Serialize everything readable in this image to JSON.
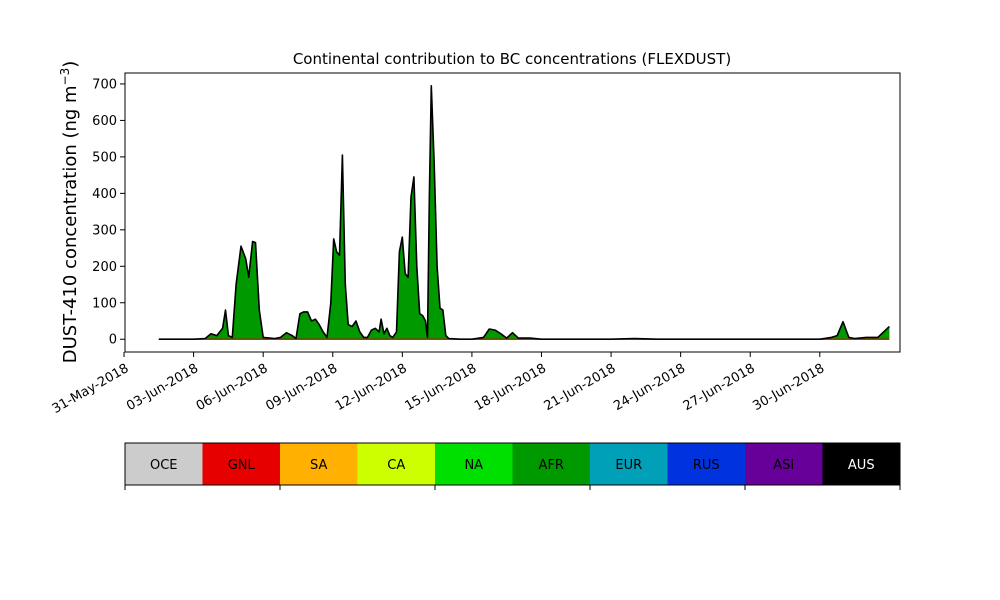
{
  "chart_data": {
    "type": "area",
    "title": "Continental contribution to BC concentrations (FLEXDUST)",
    "ylabel_main": "DUST-410 concentration (ng m",
    "ylabel_exp": "−3",
    "ylabel_close": ")",
    "xlabel": "",
    "x_range": [
      "2018-05-31T01:00",
      "2018-07-03T11:00"
    ],
    "ylim": [
      -35,
      730
    ],
    "yticks": [
      0,
      100,
      200,
      300,
      400,
      500,
      600,
      700
    ],
    "xticks": [
      {
        "date": "2018-05-31",
        "label": "31-May-2018"
      },
      {
        "date": "2018-06-03",
        "label": "03-Jun-2018"
      },
      {
        "date": "2018-06-06",
        "label": "06-Jun-2018"
      },
      {
        "date": "2018-06-09",
        "label": "09-Jun-2018"
      },
      {
        "date": "2018-06-12",
        "label": "12-Jun-2018"
      },
      {
        "date": "2018-06-15",
        "label": "15-Jun-2018"
      },
      {
        "date": "2018-06-18",
        "label": "18-Jun-2018"
      },
      {
        "date": "2018-06-21",
        "label": "21-Jun-2018"
      },
      {
        "date": "2018-06-24",
        "label": "24-Jun-2018"
      },
      {
        "date": "2018-06-27",
        "label": "27-Jun-2018"
      },
      {
        "date": "2018-06-30",
        "label": "30-Jun-2018"
      }
    ],
    "fill_color": "#009900",
    "line_color": "#000000",
    "legend_placement": "bottom",
    "legend": [
      {
        "label": "OCE",
        "color": "#cccccc",
        "text_color": "#000000"
      },
      {
        "label": "GNL",
        "color": "#e60000",
        "text_color": "#000000"
      },
      {
        "label": "SA",
        "color": "#ffb000",
        "text_color": "#000000"
      },
      {
        "label": "CA",
        "color": "#ccff00",
        "text_color": "#000000"
      },
      {
        "label": "NA",
        "color": "#00e000",
        "text_color": "#000000"
      },
      {
        "label": "AFR",
        "color": "#009900",
        "text_color": "#000000"
      },
      {
        "label": "EUR",
        "color": "#00a0b8",
        "text_color": "#000000"
      },
      {
        "label": "RUS",
        "color": "#0033dd",
        "text_color": "#000000"
      },
      {
        "label": "ASI",
        "color": "#660099",
        "text_color": "#000000"
      },
      {
        "label": "AUS",
        "color": "#000000",
        "text_color": "#ffffff"
      }
    ],
    "series": [
      {
        "name": "AFR",
        "points": [
          [
            "2018-06-01T12:00",
            0
          ],
          [
            "2018-06-02T00:00",
            0
          ],
          [
            "2018-06-02T12:00",
            0
          ],
          [
            "2018-06-03T00:00",
            0
          ],
          [
            "2018-06-03T12:00",
            2
          ],
          [
            "2018-06-03T18:00",
            15
          ],
          [
            "2018-06-04T00:00",
            10
          ],
          [
            "2018-06-04T06:00",
            30
          ],
          [
            "2018-06-04T09:00",
            80
          ],
          [
            "2018-06-04T12:00",
            10
          ],
          [
            "2018-06-04T16:00",
            5
          ],
          [
            "2018-06-04T20:00",
            150
          ],
          [
            "2018-06-05T01:00",
            255
          ],
          [
            "2018-06-05T06:00",
            220
          ],
          [
            "2018-06-05T09:00",
            170
          ],
          [
            "2018-06-05T13:00",
            268
          ],
          [
            "2018-06-05T16:00",
            265
          ],
          [
            "2018-06-05T20:00",
            80
          ],
          [
            "2018-06-06T00:00",
            5
          ],
          [
            "2018-06-06T12:00",
            2
          ],
          [
            "2018-06-06T18:00",
            5
          ],
          [
            "2018-06-07T00:00",
            18
          ],
          [
            "2018-06-07T06:00",
            10
          ],
          [
            "2018-06-07T10:00",
            2
          ],
          [
            "2018-06-07T14:00",
            70
          ],
          [
            "2018-06-07T18:00",
            75
          ],
          [
            "2018-06-07T22:00",
            75
          ],
          [
            "2018-06-08T02:00",
            50
          ],
          [
            "2018-06-08T06:00",
            55
          ],
          [
            "2018-06-08T10:00",
            40
          ],
          [
            "2018-06-08T14:00",
            20
          ],
          [
            "2018-06-08T18:00",
            5
          ],
          [
            "2018-06-08T22:00",
            100
          ],
          [
            "2018-06-09T01:00",
            275
          ],
          [
            "2018-06-09T04:00",
            240
          ],
          [
            "2018-06-09T07:00",
            230
          ],
          [
            "2018-06-09T10:00",
            505
          ],
          [
            "2018-06-09T13:00",
            150
          ],
          [
            "2018-06-09T16:00",
            40
          ],
          [
            "2018-06-09T20:00",
            35
          ],
          [
            "2018-06-10T00:00",
            50
          ],
          [
            "2018-06-10T04:00",
            20
          ],
          [
            "2018-06-10T08:00",
            5
          ],
          [
            "2018-06-10T12:00",
            5
          ],
          [
            "2018-06-10T16:00",
            25
          ],
          [
            "2018-06-10T20:00",
            30
          ],
          [
            "2018-06-11T00:00",
            20
          ],
          [
            "2018-06-11T02:00",
            55
          ],
          [
            "2018-06-11T05:00",
            15
          ],
          [
            "2018-06-11T08:00",
            30
          ],
          [
            "2018-06-11T11:00",
            10
          ],
          [
            "2018-06-11T14:00",
            5
          ],
          [
            "2018-06-11T18:00",
            20
          ],
          [
            "2018-06-11T21:00",
            240
          ],
          [
            "2018-06-12T00:00",
            280
          ],
          [
            "2018-06-12T03:00",
            180
          ],
          [
            "2018-06-12T06:00",
            170
          ],
          [
            "2018-06-12T09:00",
            390
          ],
          [
            "2018-06-12T12:00",
            445
          ],
          [
            "2018-06-12T15:00",
            200
          ],
          [
            "2018-06-12T18:00",
            70
          ],
          [
            "2018-06-12T21:00",
            65
          ],
          [
            "2018-06-13T00:00",
            50
          ],
          [
            "2018-06-13T02:00",
            5
          ],
          [
            "2018-06-13T04:00",
            400
          ],
          [
            "2018-06-13T06:00",
            695
          ],
          [
            "2018-06-13T09:00",
            480
          ],
          [
            "2018-06-13T12:00",
            200
          ],
          [
            "2018-06-13T15:00",
            85
          ],
          [
            "2018-06-13T18:00",
            80
          ],
          [
            "2018-06-13T21:00",
            10
          ],
          [
            "2018-06-14T00:00",
            2
          ],
          [
            "2018-06-14T12:00",
            0
          ],
          [
            "2018-06-15T00:00",
            0
          ],
          [
            "2018-06-15T12:00",
            5
          ],
          [
            "2018-06-15T18:00",
            28
          ],
          [
            "2018-06-16T00:00",
            25
          ],
          [
            "2018-06-16T06:00",
            15
          ],
          [
            "2018-06-16T12:00",
            3
          ],
          [
            "2018-06-16T18:00",
            18
          ],
          [
            "2018-06-17T00:00",
            3
          ],
          [
            "2018-06-17T12:00",
            3
          ],
          [
            "2018-06-18T00:00",
            0
          ],
          [
            "2018-06-19T00:00",
            0
          ],
          [
            "2018-06-20T00:00",
            0
          ],
          [
            "2018-06-21T00:00",
            0
          ],
          [
            "2018-06-22T00:00",
            2
          ],
          [
            "2018-06-23T00:00",
            0
          ],
          [
            "2018-06-24T00:00",
            0
          ],
          [
            "2018-06-25T00:00",
            0
          ],
          [
            "2018-06-26T00:00",
            0
          ],
          [
            "2018-06-27T00:00",
            0
          ],
          [
            "2018-06-28T00:00",
            0
          ],
          [
            "2018-06-29T00:00",
            0
          ],
          [
            "2018-06-30T00:00",
            0
          ],
          [
            "2018-06-30T12:00",
            5
          ],
          [
            "2018-06-30T18:00",
            10
          ],
          [
            "2018-07-01T00:00",
            48
          ],
          [
            "2018-07-01T06:00",
            5
          ],
          [
            "2018-07-01T12:00",
            2
          ],
          [
            "2018-07-02T00:00",
            5
          ],
          [
            "2018-07-02T12:00",
            5
          ],
          [
            "2018-07-03T00:00",
            35
          ]
        ]
      }
    ]
  }
}
